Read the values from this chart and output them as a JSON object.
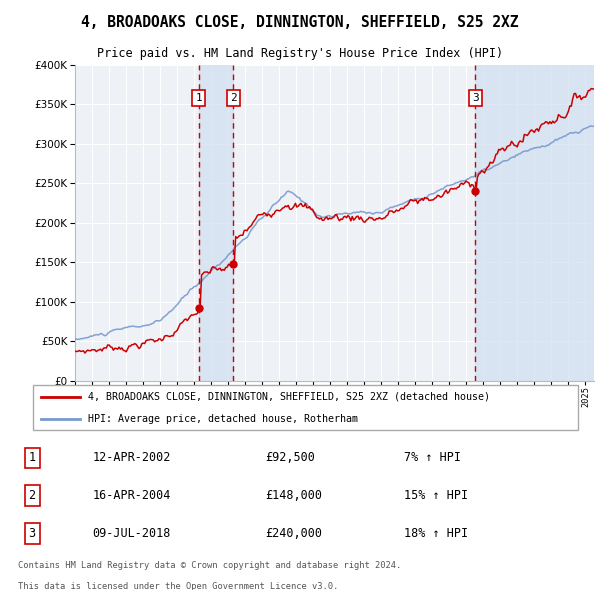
{
  "title": "4, BROADOAKS CLOSE, DINNINGTON, SHEFFIELD, S25 2XZ",
  "subtitle": "Price paid vs. HM Land Registry's House Price Index (HPI)",
  "legend_label_red": "4, BROADOAKS CLOSE, DINNINGTON, SHEFFIELD, S25 2XZ (detached house)",
  "legend_label_blue": "HPI: Average price, detached house, Rotherham",
  "footnote1": "Contains HM Land Registry data © Crown copyright and database right 2024.",
  "footnote2": "This data is licensed under the Open Government Licence v3.0.",
  "transactions": [
    {
      "num": 1,
      "date": "12-APR-2002",
      "price": "£92,500",
      "pct": "7% ↑ HPI",
      "year": 2002.28,
      "price_val": 92500
    },
    {
      "num": 2,
      "date": "16-APR-2004",
      "price": "£148,000",
      "pct": "15% ↑ HPI",
      "year": 2004.29,
      "price_val": 148000
    },
    {
      "num": 3,
      "date": "09-JUL-2018",
      "price": "£240,000",
      "pct": "18% ↑ HPI",
      "year": 2018.52,
      "price_val": 240000
    }
  ],
  "xmin": 1995,
  "xmax": 2025.5,
  "ymin": 0,
  "ymax": 400000,
  "yticks": [
    0,
    50000,
    100000,
    150000,
    200000,
    250000,
    300000,
    350000,
    400000
  ],
  "background_color": "#ffffff",
  "plot_bg_color": "#eef2f7",
  "grid_color": "#ffffff",
  "red_color": "#cc0000",
  "blue_color": "#7799cc",
  "shade_color": "#d0dff0"
}
